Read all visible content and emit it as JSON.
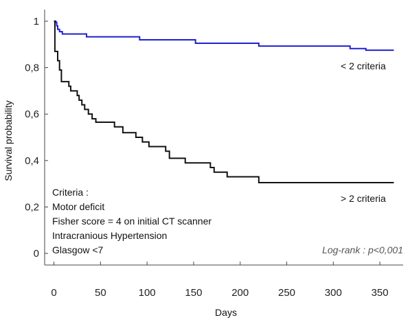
{
  "chart_data": {
    "type": "line",
    "xlabel": "Days",
    "ylabel": "Survival probability",
    "xlim": [
      -10,
      375
    ],
    "ylim": [
      -0.05,
      1.05
    ],
    "x_ticks": [
      0,
      50,
      100,
      150,
      200,
      250,
      300,
      350
    ],
    "y_ticks": [
      {
        "value": 0,
        "label": "0"
      },
      {
        "value": 0.2,
        "label": "0,2"
      },
      {
        "value": 0.4,
        "label": "0,4"
      },
      {
        "value": 0.6,
        "label": "0,6"
      },
      {
        "value": 0.8,
        "label": "0,8"
      },
      {
        "value": 1,
        "label": "1"
      }
    ],
    "series": [
      {
        "name": "< 2 criteria",
        "color": "#1f1fd0",
        "step": true,
        "points": [
          [
            0,
            1
          ],
          [
            2,
            0.995
          ],
          [
            3,
            0.98
          ],
          [
            4,
            0.965
          ],
          [
            6,
            0.955
          ],
          [
            9,
            0.945
          ],
          [
            35,
            0.933
          ],
          [
            92,
            0.92
          ],
          [
            152,
            0.905
          ],
          [
            220,
            0.893
          ],
          [
            318,
            0.882
          ],
          [
            335,
            0.875
          ],
          [
            365,
            0.875
          ]
        ]
      },
      {
        "name": "> 2 criteria",
        "color": "#111111",
        "step": true,
        "points": [
          [
            0,
            1
          ],
          [
            1,
            0.87
          ],
          [
            4,
            0.83
          ],
          [
            6,
            0.79
          ],
          [
            8,
            0.74
          ],
          [
            16,
            0.72
          ],
          [
            18,
            0.7
          ],
          [
            25,
            0.68
          ],
          [
            27,
            0.66
          ],
          [
            30,
            0.64
          ],
          [
            33,
            0.62
          ],
          [
            37,
            0.6
          ],
          [
            41,
            0.58
          ],
          [
            45,
            0.565
          ],
          [
            65,
            0.545
          ],
          [
            74,
            0.52
          ],
          [
            88,
            0.5
          ],
          [
            95,
            0.48
          ],
          [
            102,
            0.46
          ],
          [
            120,
            0.44
          ],
          [
            124,
            0.41
          ],
          [
            141,
            0.39
          ],
          [
            168,
            0.37
          ],
          [
            172,
            0.35
          ],
          [
            186,
            0.33
          ],
          [
            220,
            0.305
          ],
          [
            365,
            0.305
          ]
        ]
      }
    ],
    "series_labels": [
      "< 2 criteria",
      "> 2 criteria"
    ],
    "criteria_box": {
      "title": "Criteria :",
      "items": [
        "Motor deficit",
        "Fisher score = 4 on initial CT scanner",
        "Intracranious Hypertension",
        "Glasgow <7"
      ]
    },
    "test_label": "Log-rank : p<0,001",
    "grid": false,
    "legend": "none"
  }
}
